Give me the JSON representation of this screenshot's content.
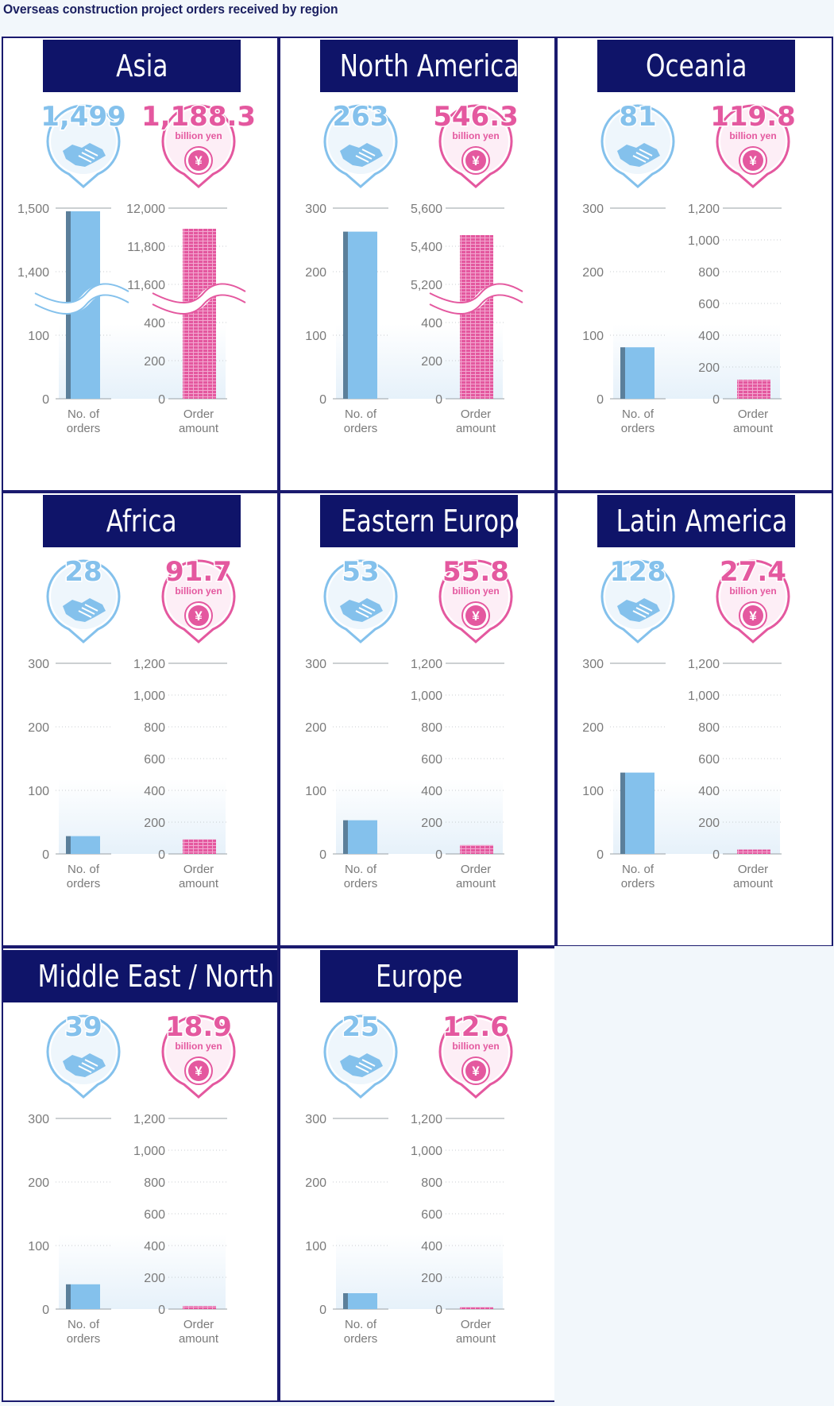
{
  "title": "Overseas construction project orders received by region",
  "colors": {
    "navy": "#0f1469",
    "blue": "#84c1ec",
    "blue_dark": "#5b7f9a",
    "pink": "#e4589f",
    "pink_light": "#f2a8d0",
    "axis_text": "#7a7a7a"
  },
  "labels": {
    "orders_axis": [
      "No. of",
      "orders"
    ],
    "amount_axis": [
      "Order",
      "amount"
    ],
    "amount_unit": "billion yen",
    "orders_icon": "handshake-icon",
    "amount_icon": "yen-coin-icon"
  },
  "chart_data": [
    {
      "type": "bar",
      "region": "Asia",
      "orders": {
        "display": "1,499",
        "value": 1499,
        "ticks": [
          "0",
          "100",
          "1,400",
          "1,500"
        ],
        "broken": true,
        "ylim": [
          0,
          1500
        ]
      },
      "amount": {
        "display": "1,188.3",
        "value": 1188.3,
        "ticks": [
          "0",
          "200",
          "400",
          "11,600",
          "11,800",
          "12,000"
        ],
        "broken": true,
        "ylim": [
          0,
          12000
        ]
      }
    },
    {
      "type": "bar",
      "region": "North America",
      "orders": {
        "display": "263",
        "value": 263,
        "ticks": [
          "0",
          "100",
          "200",
          "300"
        ],
        "broken": false,
        "ylim": [
          0,
          300
        ]
      },
      "amount": {
        "display": "546.3",
        "value": 546.3,
        "ticks": [
          "0",
          "200",
          "400",
          "5,200",
          "5,400",
          "5,600"
        ],
        "broken": true,
        "ylim": [
          0,
          5600
        ]
      }
    },
    {
      "type": "bar",
      "region": "Oceania",
      "orders": {
        "display": "81",
        "value": 81,
        "ticks": [
          "0",
          "100",
          "200",
          "300"
        ],
        "broken": false,
        "ylim": [
          0,
          300
        ]
      },
      "amount": {
        "display": "119.8",
        "value": 119.8,
        "ticks": [
          "0",
          "200",
          "400",
          "600",
          "800",
          "1,000",
          "1,200"
        ],
        "broken": false,
        "ylim": [
          0,
          1200
        ]
      }
    },
    {
      "type": "bar",
      "region": "Africa",
      "orders": {
        "display": "28",
        "value": 28,
        "ticks": [
          "0",
          "100",
          "200",
          "300"
        ],
        "broken": false,
        "ylim": [
          0,
          300
        ]
      },
      "amount": {
        "display": "91.7",
        "value": 91.7,
        "ticks": [
          "0",
          "200",
          "400",
          "600",
          "800",
          "1,000",
          "1,200"
        ],
        "broken": false,
        "ylim": [
          0,
          1200
        ]
      }
    },
    {
      "type": "bar",
      "region": "Eastern Europe",
      "orders": {
        "display": "53",
        "value": 53,
        "ticks": [
          "0",
          "100",
          "200",
          "300"
        ],
        "broken": false,
        "ylim": [
          0,
          300
        ]
      },
      "amount": {
        "display": "55.8",
        "value": 55.8,
        "ticks": [
          "0",
          "200",
          "400",
          "600",
          "800",
          "1,000",
          "1,200"
        ],
        "broken": false,
        "ylim": [
          0,
          1200
        ]
      }
    },
    {
      "type": "bar",
      "region": "Latin America",
      "orders": {
        "display": "128",
        "value": 128,
        "ticks": [
          "0",
          "100",
          "200",
          "300"
        ],
        "broken": false,
        "ylim": [
          0,
          300
        ]
      },
      "amount": {
        "display": "27.4",
        "value": 27.4,
        "ticks": [
          "0",
          "200",
          "400",
          "600",
          "800",
          "1,000",
          "1,200"
        ],
        "broken": false,
        "ylim": [
          0,
          1200
        ]
      }
    },
    {
      "type": "bar",
      "region": "Middle East / North Africa",
      "orders": {
        "display": "39",
        "value": 39,
        "ticks": [
          "0",
          "100",
          "200",
          "300"
        ],
        "broken": false,
        "ylim": [
          0,
          300
        ]
      },
      "amount": {
        "display": "18.9",
        "value": 18.9,
        "ticks": [
          "0",
          "200",
          "400",
          "600",
          "800",
          "1,000",
          "1,200"
        ],
        "broken": false,
        "ylim": [
          0,
          1200
        ]
      }
    },
    {
      "type": "bar",
      "region": "Europe",
      "orders": {
        "display": "25",
        "value": 25,
        "ticks": [
          "0",
          "100",
          "200",
          "300"
        ],
        "broken": false,
        "ylim": [
          0,
          300
        ]
      },
      "amount": {
        "display": "12.6",
        "value": 12.6,
        "ticks": [
          "0",
          "200",
          "400",
          "600",
          "800",
          "1,000",
          "1,200"
        ],
        "broken": false,
        "ylim": [
          0,
          1200
        ]
      }
    }
  ]
}
